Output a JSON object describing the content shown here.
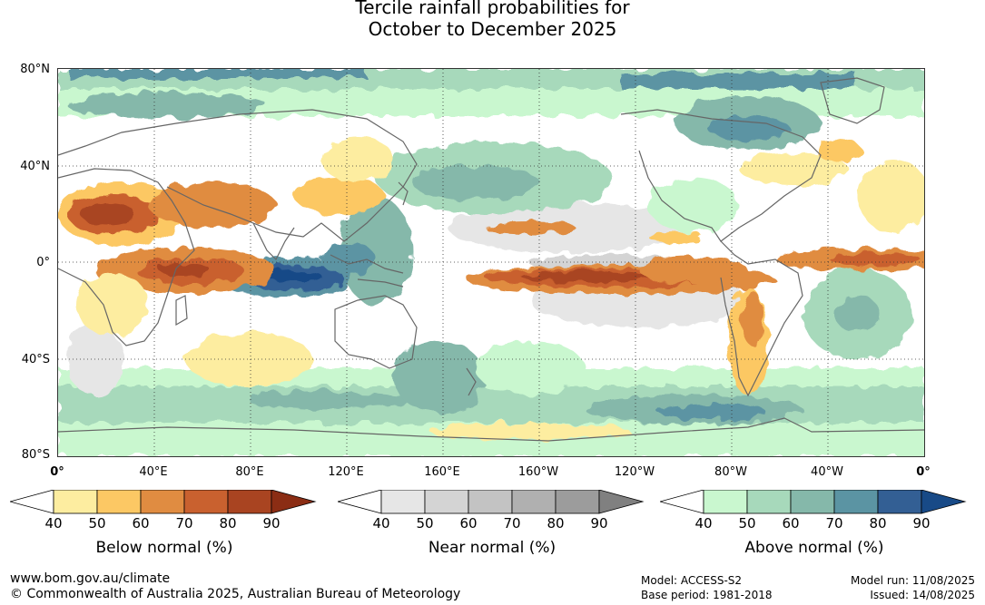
{
  "title": {
    "line1": "Tercile rainfall probabilities for",
    "line2": "October to December 2025"
  },
  "map": {
    "lat_labels": [
      "80°N",
      "40°N",
      "0°",
      "40°S",
      "80°S"
    ],
    "lon_labels": [
      "0°",
      "40°E",
      "80°E",
      "120°E",
      "160°E",
      "160°W",
      "120°W",
      "80°W",
      "40°W",
      "0°"
    ],
    "colors": {
      "ocean_white": "#ffffff",
      "land_outline": "#555555"
    }
  },
  "legends": [
    {
      "title": "Below normal (%)",
      "ticks": [
        "40",
        "50",
        "60",
        "70",
        "80",
        "90"
      ],
      "colors": [
        "#ffffff",
        "#fdeda0",
        "#fcc864",
        "#e08c41",
        "#c9612f",
        "#a94421",
        "#8b2d14"
      ]
    },
    {
      "title": "Near normal (%)",
      "ticks": [
        "40",
        "50",
        "60",
        "70",
        "80",
        "90"
      ],
      "colors": [
        "#ffffff",
        "#e6e6e6",
        "#d4d4d4",
        "#c3c3c3",
        "#b0b0b0",
        "#9c9c9c",
        "#808080"
      ]
    },
    {
      "title": "Above normal (%)",
      "ticks": [
        "40",
        "50",
        "60",
        "70",
        "80",
        "90"
      ],
      "colors": [
        "#ffffff",
        "#c9f7cf",
        "#a7d9bb",
        "#85b8aa",
        "#5b94a3",
        "#335f94",
        "#184a87"
      ]
    }
  ],
  "footer": {
    "url": "www.bom.gov.au/climate",
    "copyright": "© Commonwealth of Australia 2025, Australian Bureau of Meteorology",
    "model": "Model: ACCESS-S2",
    "base_period": "Base period: 1981-2018",
    "model_run": "Model run: 11/08/2025",
    "issued": "Issued: 14/08/2025"
  }
}
